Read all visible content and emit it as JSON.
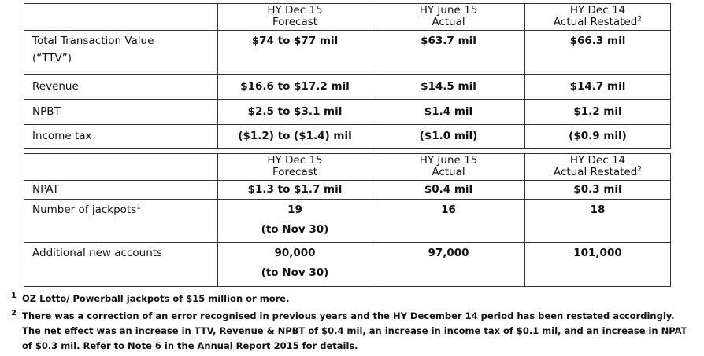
{
  "table1": {
    "headers": [
      {
        "line1": "HY Dec 15",
        "line2": "Forecast",
        "sup": ""
      },
      {
        "line1": "HY June 15",
        "line2": "Actual",
        "sup": ""
      },
      {
        "line1": "HY Dec 14",
        "line2": "Actual Restated",
        "sup": "2"
      }
    ],
    "rows": [
      {
        "label": "Total Transaction Value",
        "label2": "(“TTV”)",
        "values": [
          "$74 to $77 mil",
          "$63.7 mil",
          "$66.3 mil"
        ]
      },
      {
        "label": "Revenue",
        "values": [
          "$16.6 to $17.2 mil",
          "$14.5 mil",
          "$14.7 mil"
        ]
      },
      {
        "label": "NPBT",
        "values": [
          "$2.5 to $3.1 mil",
          "$1.4 mil",
          "$1.2 mil"
        ]
      },
      {
        "label": "Income tax",
        "values": [
          "($1.2) to ($1.4) mil",
          "($1.0 mil)",
          "($0.9 mil)"
        ]
      }
    ]
  },
  "table2": {
    "headers": [
      {
        "line1": "HY Dec 15",
        "line2": "Forecast",
        "sup": ""
      },
      {
        "line1": "HY June 15",
        "line2": "Actual",
        "sup": ""
      },
      {
        "line1": "HY Dec 14",
        "line2": "Actual Restated",
        "sup": "2"
      }
    ],
    "rows": [
      {
        "label": "NPAT",
        "values": [
          "$1.3 to $1.7 mil",
          "$0.4 mil",
          "$0.3 mil"
        ]
      },
      {
        "label": "Number of jackpots",
        "label_sup": "1",
        "values": [
          "19",
          "16",
          "18"
        ],
        "sub": "(to Nov 30)"
      },
      {
        "label": "Additional new accounts",
        "values": [
          "90,000",
          "97,000",
          "101,000"
        ],
        "sub": "(to Nov 30)"
      }
    ]
  },
  "footnotes": [
    {
      "marker": "1",
      "text": "OZ Lotto/ Powerball jackpots of $15 million or more."
    },
    {
      "marker": "2",
      "text": "There was a correction of an error recognised in previous years and the HY December 14 period has been restated accordingly. The net effect was an increase in TTV, Revenue & NPBT of $0.4 mil, an increase in income tax of $0.1 mil, and an increase in NPAT of $0.3 mil. Refer to Note 6 in the Annual Report 2015 for details."
    }
  ]
}
